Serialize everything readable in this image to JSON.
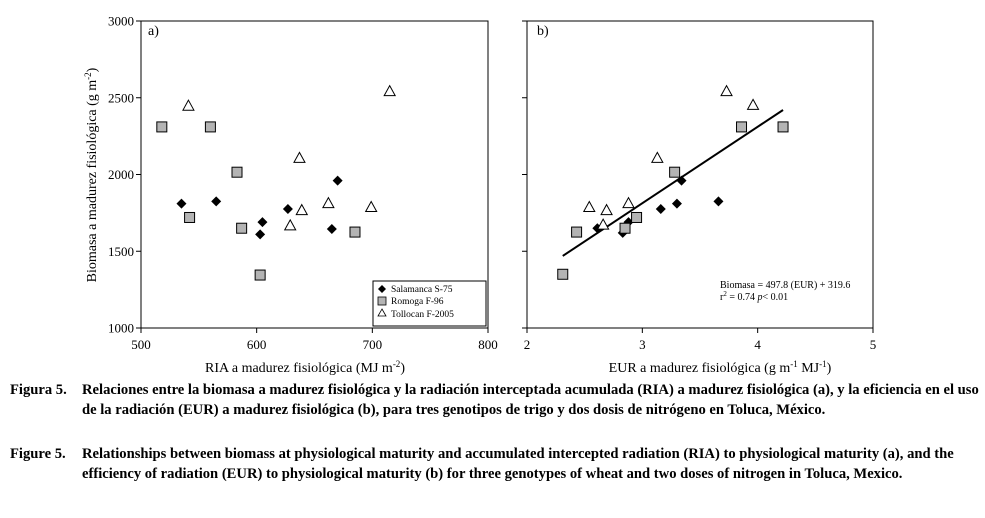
{
  "figure": {
    "y_axis_label": "Biomasa a madurez fisiológica (g m",
    "y_axis_label_sup": "-2",
    "y_axis_label_end": ")",
    "yticks": [
      "1000",
      "1500",
      "2000",
      "2500",
      "3000"
    ],
    "ylim": [
      1000,
      3000
    ],
    "panel_a": {
      "tag": "a)",
      "xlabel": "RIA a madurez fisiológica (MJ m",
      "xlabel_sup": "-2",
      "xlabel_end": ")",
      "xlim": [
        500,
        800
      ],
      "xticks": [
        "500",
        "600",
        "700",
        "800"
      ],
      "xtick_values": [
        500,
        600,
        700,
        800
      ]
    },
    "panel_b": {
      "tag": "b)",
      "xlabel": "EUR a madurez fisiológica (g m",
      "xlabel_sup1": "-1",
      "xlabel_mid": " MJ",
      "xlabel_sup2": "-1",
      "xlabel_end": ")",
      "xlim": [
        2,
        5
      ],
      "xticks": [
        "2",
        "3",
        "4",
        "5"
      ],
      "xtick_values": [
        2,
        3,
        4,
        5
      ],
      "equation": "Biomasa = 497.8 (EUR) + 319.6",
      "r2_label": "r",
      "r2_sup": "2",
      "r2_rest": " = 0.74 ",
      "p_label": "p",
      "p_rest": "< 0.01"
    },
    "legend": [
      {
        "name": "Salamanca S-75",
        "marker": "diamond",
        "fill": "#000000"
      },
      {
        "name": "Romoga F-96",
        "marker": "square",
        "fill": "#b4b4b4"
      },
      {
        "name": "Tollocan F-2005",
        "marker": "triangle",
        "fill": "#ffffff"
      }
    ]
  },
  "chart_data": [
    {
      "type": "scatter",
      "panel": "a)",
      "xlabel": "RIA a madurez fisiológica (MJ m-2)",
      "ylabel": "Biomasa a madurez fisiológica (g m-2)",
      "xlim": [
        500,
        800
      ],
      "ylim": [
        1000,
        3000
      ],
      "series": [
        {
          "name": "Salamanca S-75",
          "points": [
            [
              535,
              1810
            ],
            [
              565,
              1825
            ],
            [
              603,
              1610
            ],
            [
              605,
              1690
            ],
            [
              627,
              1775
            ],
            [
              665,
              1645
            ],
            [
              670,
              1960
            ]
          ]
        },
        {
          "name": "Romoga F-96",
          "points": [
            [
              518,
              2310
            ],
            [
              542,
              1720
            ],
            [
              560,
              2310
            ],
            [
              583,
              2015
            ],
            [
              587,
              1650
            ],
            [
              603,
              1345
            ],
            [
              685,
              1625
            ]
          ]
        },
        {
          "name": "Tollocan F-2005",
          "points": [
            [
              541,
              2445
            ],
            [
              629,
              1665
            ],
            [
              637,
              2105
            ],
            [
              639,
              1765
            ],
            [
              662,
              1810
            ],
            [
              699,
              1785
            ],
            [
              715,
              2540
            ]
          ]
        }
      ]
    },
    {
      "type": "scatter",
      "panel": "b)",
      "xlabel": "EUR a madurez fisiológica (g m-1 MJ-1)",
      "ylabel": "Biomasa a madurez fisiológica (g m-2)",
      "xlim": [
        2,
        5
      ],
      "ylim": [
        1000,
        3000
      ],
      "series": [
        {
          "name": "Salamanca S-75",
          "points": [
            [
              2.61,
              1650
            ],
            [
              2.83,
              1620
            ],
            [
              2.88,
              1690
            ],
            [
              3.16,
              1775
            ],
            [
              3.3,
              1810
            ],
            [
              3.34,
              1960
            ],
            [
              3.66,
              1825
            ]
          ]
        },
        {
          "name": "Romoga F-96",
          "points": [
            [
              2.31,
              1350
            ],
            [
              2.43,
              1625
            ],
            [
              2.85,
              1650
            ],
            [
              2.95,
              1720
            ],
            [
              3.28,
              2015
            ],
            [
              3.86,
              2310
            ],
            [
              4.22,
              2310
            ]
          ]
        },
        {
          "name": "Tollocan F-2005",
          "points": [
            [
              2.54,
              1785
            ],
            [
              2.66,
              1670
            ],
            [
              2.69,
              1765
            ],
            [
              2.88,
              1810
            ],
            [
              3.13,
              2105
            ],
            [
              3.73,
              2540
            ],
            [
              3.96,
              2450
            ]
          ]
        }
      ],
      "regression": {
        "slope": 497.8,
        "intercept": 319.6,
        "x_range": [
          2.31,
          4.22
        ]
      }
    }
  ],
  "caption": {
    "es_label": "Figura 5.",
    "es_text": "Relaciones entre la biomasa a madurez fisiológica y la radiación interceptada acumulada (RIA) a madurez fisiológica (a), y la eficiencia en el uso de la radiación (EUR) a madurez fisiológica (b), para tres genotipos de trigo y dos dosis de nitrógeno en Toluca, México.",
    "en_label": "Figure 5.",
    "en_text": "Relationships between biomass at physiological maturity and accumulated intercepted radiation (RIA) to physiological maturity (a), and the efficiency of radiation (EUR) to physiological maturity (b) for three genotypes of wheat and two doses of nitrogen in Toluca, Mexico."
  }
}
